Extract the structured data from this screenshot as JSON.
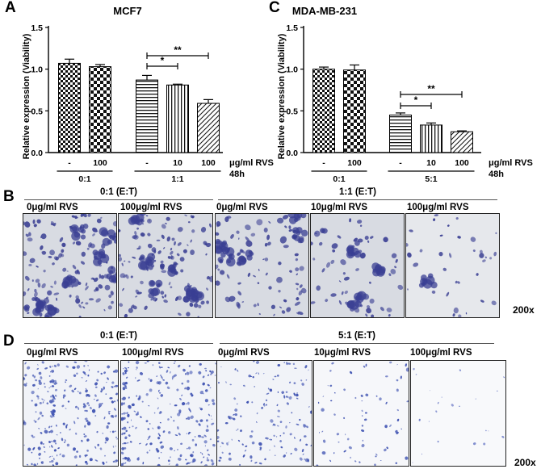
{
  "panels": {
    "a": "A",
    "b": "B",
    "c": "C",
    "d": "D"
  },
  "chart_data": [
    {
      "type": "bar",
      "title": "MCF7",
      "ylabel": "Relative expression (Viability)",
      "ylim": [
        0.0,
        1.5
      ],
      "yticks": [
        "0.0",
        "0.5",
        "1.0",
        "1.5"
      ],
      "categories": [
        "-",
        "100",
        "-",
        "10",
        "100"
      ],
      "values": [
        1.07,
        1.03,
        0.87,
        0.81,
        0.59
      ],
      "errors": [
        0.05,
        0.025,
        0.055,
        0.01,
        0.045
      ],
      "patterns": [
        "checker-fine",
        "checker-coarse",
        "horizontal",
        "vertical",
        "diagonal"
      ],
      "unit_label": "μg/ml RVS",
      "time_label": "48h",
      "groups": [
        {
          "label": "0:1",
          "bars": [
            0,
            1
          ]
        },
        {
          "label": "1:1",
          "bars": [
            2,
            3,
            4
          ]
        }
      ],
      "significance": [
        {
          "from": 2,
          "to": 3,
          "label": "*"
        },
        {
          "from": 2,
          "to": 4,
          "label": "**"
        }
      ]
    },
    {
      "type": "bar",
      "title": "MDA-MB-231",
      "ylabel": "Relative expression (Viability)",
      "ylim": [
        0.0,
        1.5
      ],
      "yticks": [
        "0.0",
        "0.5",
        "1.0",
        "1.5"
      ],
      "categories": [
        "-",
        "100",
        "-",
        "10",
        "100"
      ],
      "values": [
        1.0,
        0.99,
        0.45,
        0.33,
        0.25
      ],
      "errors": [
        0.025,
        0.06,
        0.025,
        0.025,
        0.01
      ],
      "patterns": [
        "checker-fine",
        "checker-coarse",
        "horizontal",
        "vertical",
        "diagonal"
      ],
      "unit_label": "μg/ml RVS",
      "time_label": "48h",
      "groups": [
        {
          "label": "0:1",
          "bars": [
            0,
            1
          ]
        },
        {
          "label": "5:1",
          "bars": [
            2,
            3,
            4
          ]
        }
      ],
      "significance": [
        {
          "from": 2,
          "to": 3,
          "label": "*"
        },
        {
          "from": 2,
          "to": 4,
          "label": "**"
        }
      ]
    }
  ],
  "panel_b": {
    "groups": [
      "0:1 (E:T)",
      "1:1 (E:T)"
    ],
    "images": [
      "0μg/ml RVS",
      "100μg/ml RVS",
      "0μg/ml RVS",
      "10μg/ml RVS",
      "100μg/ml RVS"
    ],
    "magnification": "200x"
  },
  "panel_d": {
    "groups": [
      "0:1 (E:T)",
      "5:1 (E:T)"
    ],
    "images": [
      "0μg/ml RVS",
      "100μg/ml RVS",
      "0μg/ml RVS",
      "10μg/ml RVS",
      "100μg/ml RVS"
    ],
    "magnification": "200x"
  },
  "colors": {
    "stain": "#3a3f93",
    "background_b": "#d8dbe2",
    "background_d": "#f1f3f8"
  }
}
